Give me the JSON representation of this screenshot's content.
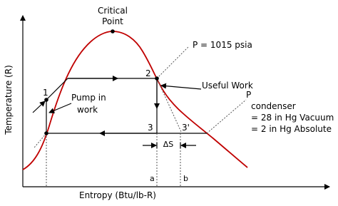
{
  "diagram": {
    "critical_point": [
      "Critical",
      "Point"
    ],
    "pressure_high": "P = 1015 psia",
    "useful_work": "Useful Work",
    "condenser": [
      "P",
      "condenser",
      "= 28 in Hg Vacuum",
      "= 2 in Hg Absolute"
    ],
    "pump": [
      "Pump in",
      "work"
    ],
    "points": [
      "1",
      "2",
      "3",
      "3'"
    ],
    "delta_s": "ΔS",
    "marks": [
      "a",
      "b"
    ],
    "x_axis_label": "Entropy (Btu/lb-R)",
    "y_axis_label": "Temperature (R)"
  }
}
